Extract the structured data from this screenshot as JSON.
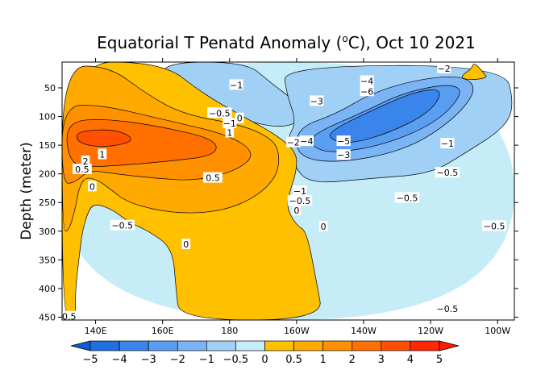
{
  "chart_data": {
    "type": "heatmap",
    "title": "Equatorial T Penatd Anomaly (°C), Oct 10 2021",
    "title_main": "Equatorial T Penatd Anomaly (",
    "title_unit": "C), Oct 10 2021",
    "title_degree": "o",
    "xlabel": "",
    "ylabel": "Depth (meter)",
    "xlim": [
      130,
      265
    ],
    "ylim": [
      455,
      5
    ],
    "x_ticks": [
      {
        "value": 140,
        "label": "140E"
      },
      {
        "value": 160,
        "label": "160E"
      },
      {
        "value": 180,
        "label": "180"
      },
      {
        "value": 200,
        "label": "160W"
      },
      {
        "value": 220,
        "label": "140W"
      },
      {
        "value": 240,
        "label": "120W"
      },
      {
        "value": 260,
        "label": "100W"
      }
    ],
    "y_ticks": [
      {
        "value": 50,
        "label": "50"
      },
      {
        "value": 100,
        "label": "100"
      },
      {
        "value": 150,
        "label": "150"
      },
      {
        "value": 200,
        "label": "200"
      },
      {
        "value": 250,
        "label": "250"
      },
      {
        "value": 300,
        "label": "300"
      },
      {
        "value": 350,
        "label": "350"
      },
      {
        "value": 400,
        "label": "400"
      },
      {
        "value": 450,
        "label": "450"
      }
    ],
    "colorbar": {
      "levels": [
        -5,
        -4,
        -3,
        -2,
        -1,
        -0.5,
        0,
        0.5,
        1,
        2,
        3,
        4,
        5
      ],
      "labels": [
        "−5",
        "−4",
        "−3",
        "−2",
        "−1",
        "−0.5",
        "0",
        "0.5",
        "1",
        "2",
        "3",
        "4",
        "5"
      ],
      "colors": [
        "#1f6fe0",
        "#3a85ec",
        "#5a9ef2",
        "#7ab4f5",
        "#a0d0f6",
        "#c6ecf7",
        "#ffc000",
        "#ffaa00",
        "#ff9000",
        "#ff7000",
        "#ff4f00",
        "#ff2600"
      ],
      "under_color": "#0f5bd6",
      "over_color": "#ff1a00"
    },
    "regions": [
      {
        "level": -0.5,
        "name": "cool-background",
        "polygon": [
          [
            130,
            5
          ],
          [
            265,
            5
          ],
          [
            265,
            455
          ],
          [
            130,
            455
          ]
        ]
      },
      {
        "level": -1,
        "name": "cool-west-upper",
        "polygon": [
          [
            160,
            5
          ],
          [
            185,
            5
          ],
          [
            192,
            40
          ],
          [
            200,
            75
          ],
          [
            202,
            105
          ],
          [
            196,
            120
          ],
          [
            186,
            110
          ],
          [
            174,
            78
          ],
          [
            160,
            45
          ]
        ]
      },
      {
        "level": -1,
        "name": "cool-east-upper",
        "polygon": [
          [
            196,
            12
          ],
          [
            262,
            10
          ],
          [
            265,
            80
          ],
          [
            262,
            120
          ],
          [
            250,
            165
          ],
          [
            240,
            200
          ],
          [
            222,
            208
          ],
          [
            204,
            218
          ],
          [
            199,
            185
          ],
          [
            197,
            140
          ],
          [
            200,
            110
          ],
          [
            197,
            60
          ]
        ]
      },
      {
        "level": -2,
        "name": "cool-east-core",
        "polygon": [
          [
            200,
            120
          ],
          [
            212,
            95
          ],
          [
            222,
            60
          ],
          [
            236,
            35
          ],
          [
            250,
            28
          ],
          [
            254,
            55
          ],
          [
            246,
            110
          ],
          [
            232,
            160
          ],
          [
            212,
            182
          ],
          [
            200,
            170
          ]
        ]
      },
      {
        "level": -3,
        "name": "cool-east-inner",
        "polygon": [
          [
            205,
            130
          ],
          [
            220,
            92
          ],
          [
            232,
            58
          ],
          [
            246,
            42
          ],
          [
            250,
            58
          ],
          [
            242,
            110
          ],
          [
            226,
            150
          ],
          [
            210,
            165
          ],
          [
            204,
            150
          ]
        ]
      },
      {
        "level": -4,
        "name": "cool-east-deep",
        "polygon": [
          [
            210,
            125
          ],
          [
            224,
            85
          ],
          [
            236,
            55
          ],
          [
            244,
            52
          ],
          [
            240,
            92
          ],
          [
            228,
            128
          ],
          [
            216,
            148
          ],
          [
            210,
            140
          ]
        ]
      },
      {
        "level": 0,
        "name": "warm-west",
        "polygon": [
          [
            130,
            5
          ],
          [
            160,
            5
          ],
          [
            172,
            60
          ],
          [
            184,
            100
          ],
          [
            194,
            132
          ],
          [
            200,
            162
          ],
          [
            200,
            195
          ],
          [
            198,
            230
          ],
          [
            197,
            260
          ],
          [
            200,
            290
          ],
          [
            203,
            300
          ],
          [
            206,
            390
          ],
          [
            208,
            455
          ],
          [
            165,
            455
          ],
          [
            164,
            400
          ],
          [
            163,
            330
          ],
          [
            156,
            300
          ],
          [
            150,
            285
          ],
          [
            145,
            262
          ],
          [
            140,
            252
          ],
          [
            138,
            262
          ],
          [
            136,
            300
          ],
          [
            135,
            350
          ],
          [
            134,
            400
          ],
          [
            134,
            455
          ],
          [
            130,
            455
          ]
        ]
      },
      {
        "level": 0.5,
        "name": "warm-west-inner",
        "polygon": [
          [
            130,
            12
          ],
          [
            144,
            12
          ],
          [
            155,
            60
          ],
          [
            166,
            96
          ],
          [
            184,
            115
          ],
          [
            193,
            140
          ],
          [
            195,
            168
          ],
          [
            194,
            205
          ],
          [
            188,
            240
          ],
          [
            178,
            265
          ],
          [
            164,
            270
          ],
          [
            150,
            252
          ],
          [
            144,
            225
          ],
          [
            141,
            212
          ],
          [
            137,
            205
          ],
          [
            135,
            225
          ],
          [
            134,
            260
          ],
          [
            132,
            300
          ],
          [
            130,
            300
          ]
        ]
      },
      {
        "level": 1,
        "name": "warm-west-band",
        "polygon": [
          [
            130,
            80
          ],
          [
            142,
            80
          ],
          [
            160,
            105
          ],
          [
            180,
            132
          ],
          [
            188,
            165
          ],
          [
            182,
            195
          ],
          [
            170,
            212
          ],
          [
            158,
            208
          ],
          [
            146,
            200
          ],
          [
            138,
            193
          ],
          [
            134,
            215
          ],
          [
            130,
            218
          ]
        ]
      },
      {
        "level": 2,
        "name": "warm-west-core",
        "polygon": [
          [
            131,
            108
          ],
          [
            144,
            104
          ],
          [
            160,
            118
          ],
          [
            176,
            140
          ],
          [
            176,
            168
          ],
          [
            162,
            178
          ],
          [
            148,
            185
          ],
          [
            138,
            188
          ],
          [
            132,
            180
          ]
        ]
      },
      {
        "level": 3,
        "name": "warm-west-peak",
        "polygon": [
          [
            135,
            125
          ],
          [
            146,
            122
          ],
          [
            152,
            140
          ],
          [
            146,
            152
          ],
          [
            138,
            152
          ],
          [
            134,
            140
          ]
        ]
      },
      {
        "level": 0,
        "name": "warm-east-spot",
        "polygon": [
          [
            253,
            5
          ],
          [
            256,
            25
          ],
          [
            257,
            32
          ],
          [
            253,
            36
          ],
          [
            249,
            34
          ],
          [
            250,
            25
          ],
          [
            252,
            18
          ]
        ]
      }
    ],
    "contour_labels": [
      {
        "x": 182,
        "y": 45,
        "text": "−1"
      },
      {
        "x": 177,
        "y": 94,
        "text": "−0.5"
      },
      {
        "x": 180,
        "y": 112,
        "text": "−1"
      },
      {
        "x": 183,
        "y": 103,
        "text": "0"
      },
      {
        "x": 180,
        "y": 128,
        "text": "1"
      },
      {
        "x": 136,
        "y": 192,
        "text": "0.5"
      },
      {
        "x": 137,
        "y": 178,
        "text": "2"
      },
      {
        "x": 142,
        "y": 166,
        "text": "1"
      },
      {
        "x": 139,
        "y": 222,
        "text": "0"
      },
      {
        "x": 175,
        "y": 207,
        "text": "0.5"
      },
      {
        "x": 148,
        "y": 290,
        "text": "−0.5"
      },
      {
        "x": 167,
        "y": 323,
        "text": "0"
      },
      {
        "x": 199,
        "y": 145,
        "text": "−2"
      },
      {
        "x": 203,
        "y": 143,
        "text": "−4"
      },
      {
        "x": 206,
        "y": 73,
        "text": "−3"
      },
      {
        "x": 221,
        "y": 38,
        "text": "−4"
      },
      {
        "x": 221,
        "y": 56,
        "text": "−6"
      },
      {
        "x": 214,
        "y": 143,
        "text": "−5"
      },
      {
        "x": 214,
        "y": 167,
        "text": "−3"
      },
      {
        "x": 244,
        "y": 16,
        "text": "−2"
      },
      {
        "x": 245,
        "y": 147,
        "text": "−1"
      },
      {
        "x": 245,
        "y": 198,
        "text": "−0.5"
      },
      {
        "x": 201,
        "y": 230,
        "text": "−1"
      },
      {
        "x": 201,
        "y": 247,
        "text": "−0.5"
      },
      {
        "x": 200,
        "y": 264,
        "text": "0"
      },
      {
        "x": 208,
        "y": 292,
        "text": "0"
      },
      {
        "x": 233,
        "y": 242,
        "text": "−0.5"
      },
      {
        "x": 259,
        "y": 291,
        "text": "−0.5"
      },
      {
        "x": 245,
        "y": 435,
        "text": "−0.5"
      },
      {
        "x": 131,
        "y": 449,
        "text": "−0.5"
      }
    ]
  }
}
